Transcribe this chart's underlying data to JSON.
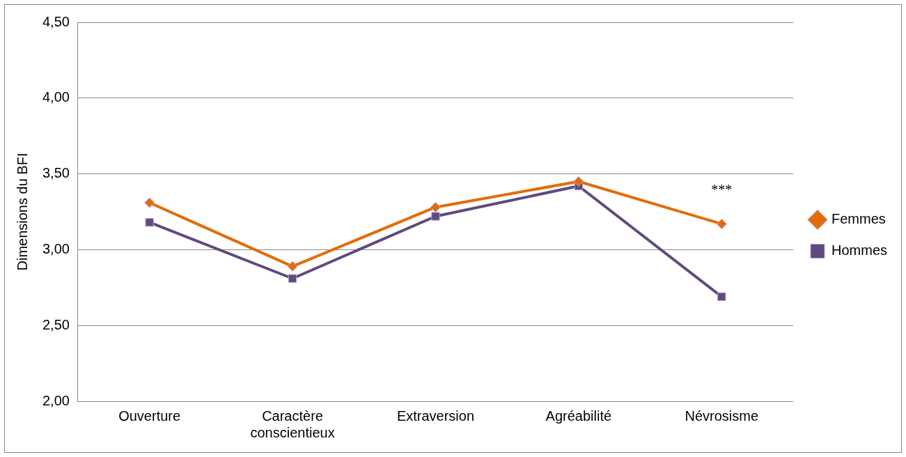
{
  "chart_data": {
    "type": "line",
    "ylabel": "Dimensions du BFI",
    "categories": [
      "Ouverture",
      "Caractère conscientieux",
      "Extraversion",
      "Agréabilité",
      "Névrosisme"
    ],
    "series": [
      {
        "name": "Femmes",
        "color": "#e36c09",
        "marker": "diamond",
        "values": [
          3.31,
          2.89,
          3.28,
          3.45,
          3.17
        ]
      },
      {
        "name": "Hommes",
        "color": "#604a7b",
        "marker": "square",
        "values": [
          3.18,
          2.81,
          3.22,
          3.42,
          2.69
        ]
      }
    ],
    "ylim": [
      2,
      4.5
    ],
    "yticks": [
      {
        "value": 2,
        "label": "2,00"
      },
      {
        "value": 2.5,
        "label": "2,50"
      },
      {
        "value": 3,
        "label": "3,00"
      },
      {
        "value": 3.5,
        "label": "3,50"
      },
      {
        "value": 4,
        "label": "4,00"
      },
      {
        "value": 4.5,
        "label": "4,50"
      }
    ],
    "grid": "y",
    "legend": "right",
    "line_style": "solid",
    "annotations": [
      "***"
    ]
  }
}
